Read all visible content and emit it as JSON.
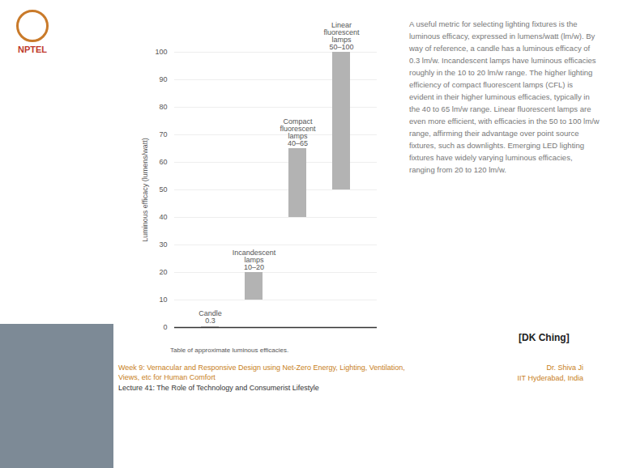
{
  "chart_data": {
    "type": "range_bar",
    "y_label": "Luminous efficacy (lumens/watt)",
    "caption": "Table of approximate luminous efficacies.",
    "categories": [
      "Candle",
      "Incandescent lamps",
      "Compact fluorescent lamps",
      "Linear fluorescent lamps"
    ],
    "values": [
      [
        0,
        0.3
      ],
      [
        10,
        20
      ],
      [
        40,
        65
      ],
      [
        50,
        100
      ]
    ],
    "value_labels": [
      "0.3",
      "10–20",
      "40–65",
      "50–100"
    ],
    "color": "#b3b3b3",
    "ylim": [
      0,
      100
    ],
    "yticks": [
      0,
      10,
      20,
      30,
      40,
      50,
      60,
      70,
      80,
      90,
      100
    ],
    "grid": true,
    "tick_labels": "y",
    "data_labels": true
  },
  "slide": {
    "logo": "NPTEL",
    "description": "A useful metric for selecting lighting fixtures is the luminous efficacy, expressed in lumens/watt (lm/w). By way of reference, a candle has a luminous efficacy of 0.3 lm/w. Incandescent lamps have luminous efficacies roughly in the 10 to 20 lm/w range. The higher lighting efficiency of compact fluorescent lamps (CFL) is evident in their higher luminous efficacies, typically in the 40 to 65 lm/w range. Linear fluorescent lamps are even more efficient, with efficacies in the 50 to 100 lm/w range, affirming their advantage over point source fixtures, such as downlights. Emerging LED lighting fixtures have widely varying luminous efficacies, ranging from 20 to 120 lm/w.",
    "source": "[DK Ching]",
    "week": "Week 9: Vernacular and Responsive Design using Net-Zero Energy, Lighting, Ventilation, Views, etc for Human Comfort",
    "lecture": "Lecture 41: The Role of Technology and Consumerist Lifestyle",
    "author": "Dr. Shiva Ji",
    "institution": "IIT Hyderabad, India"
  }
}
